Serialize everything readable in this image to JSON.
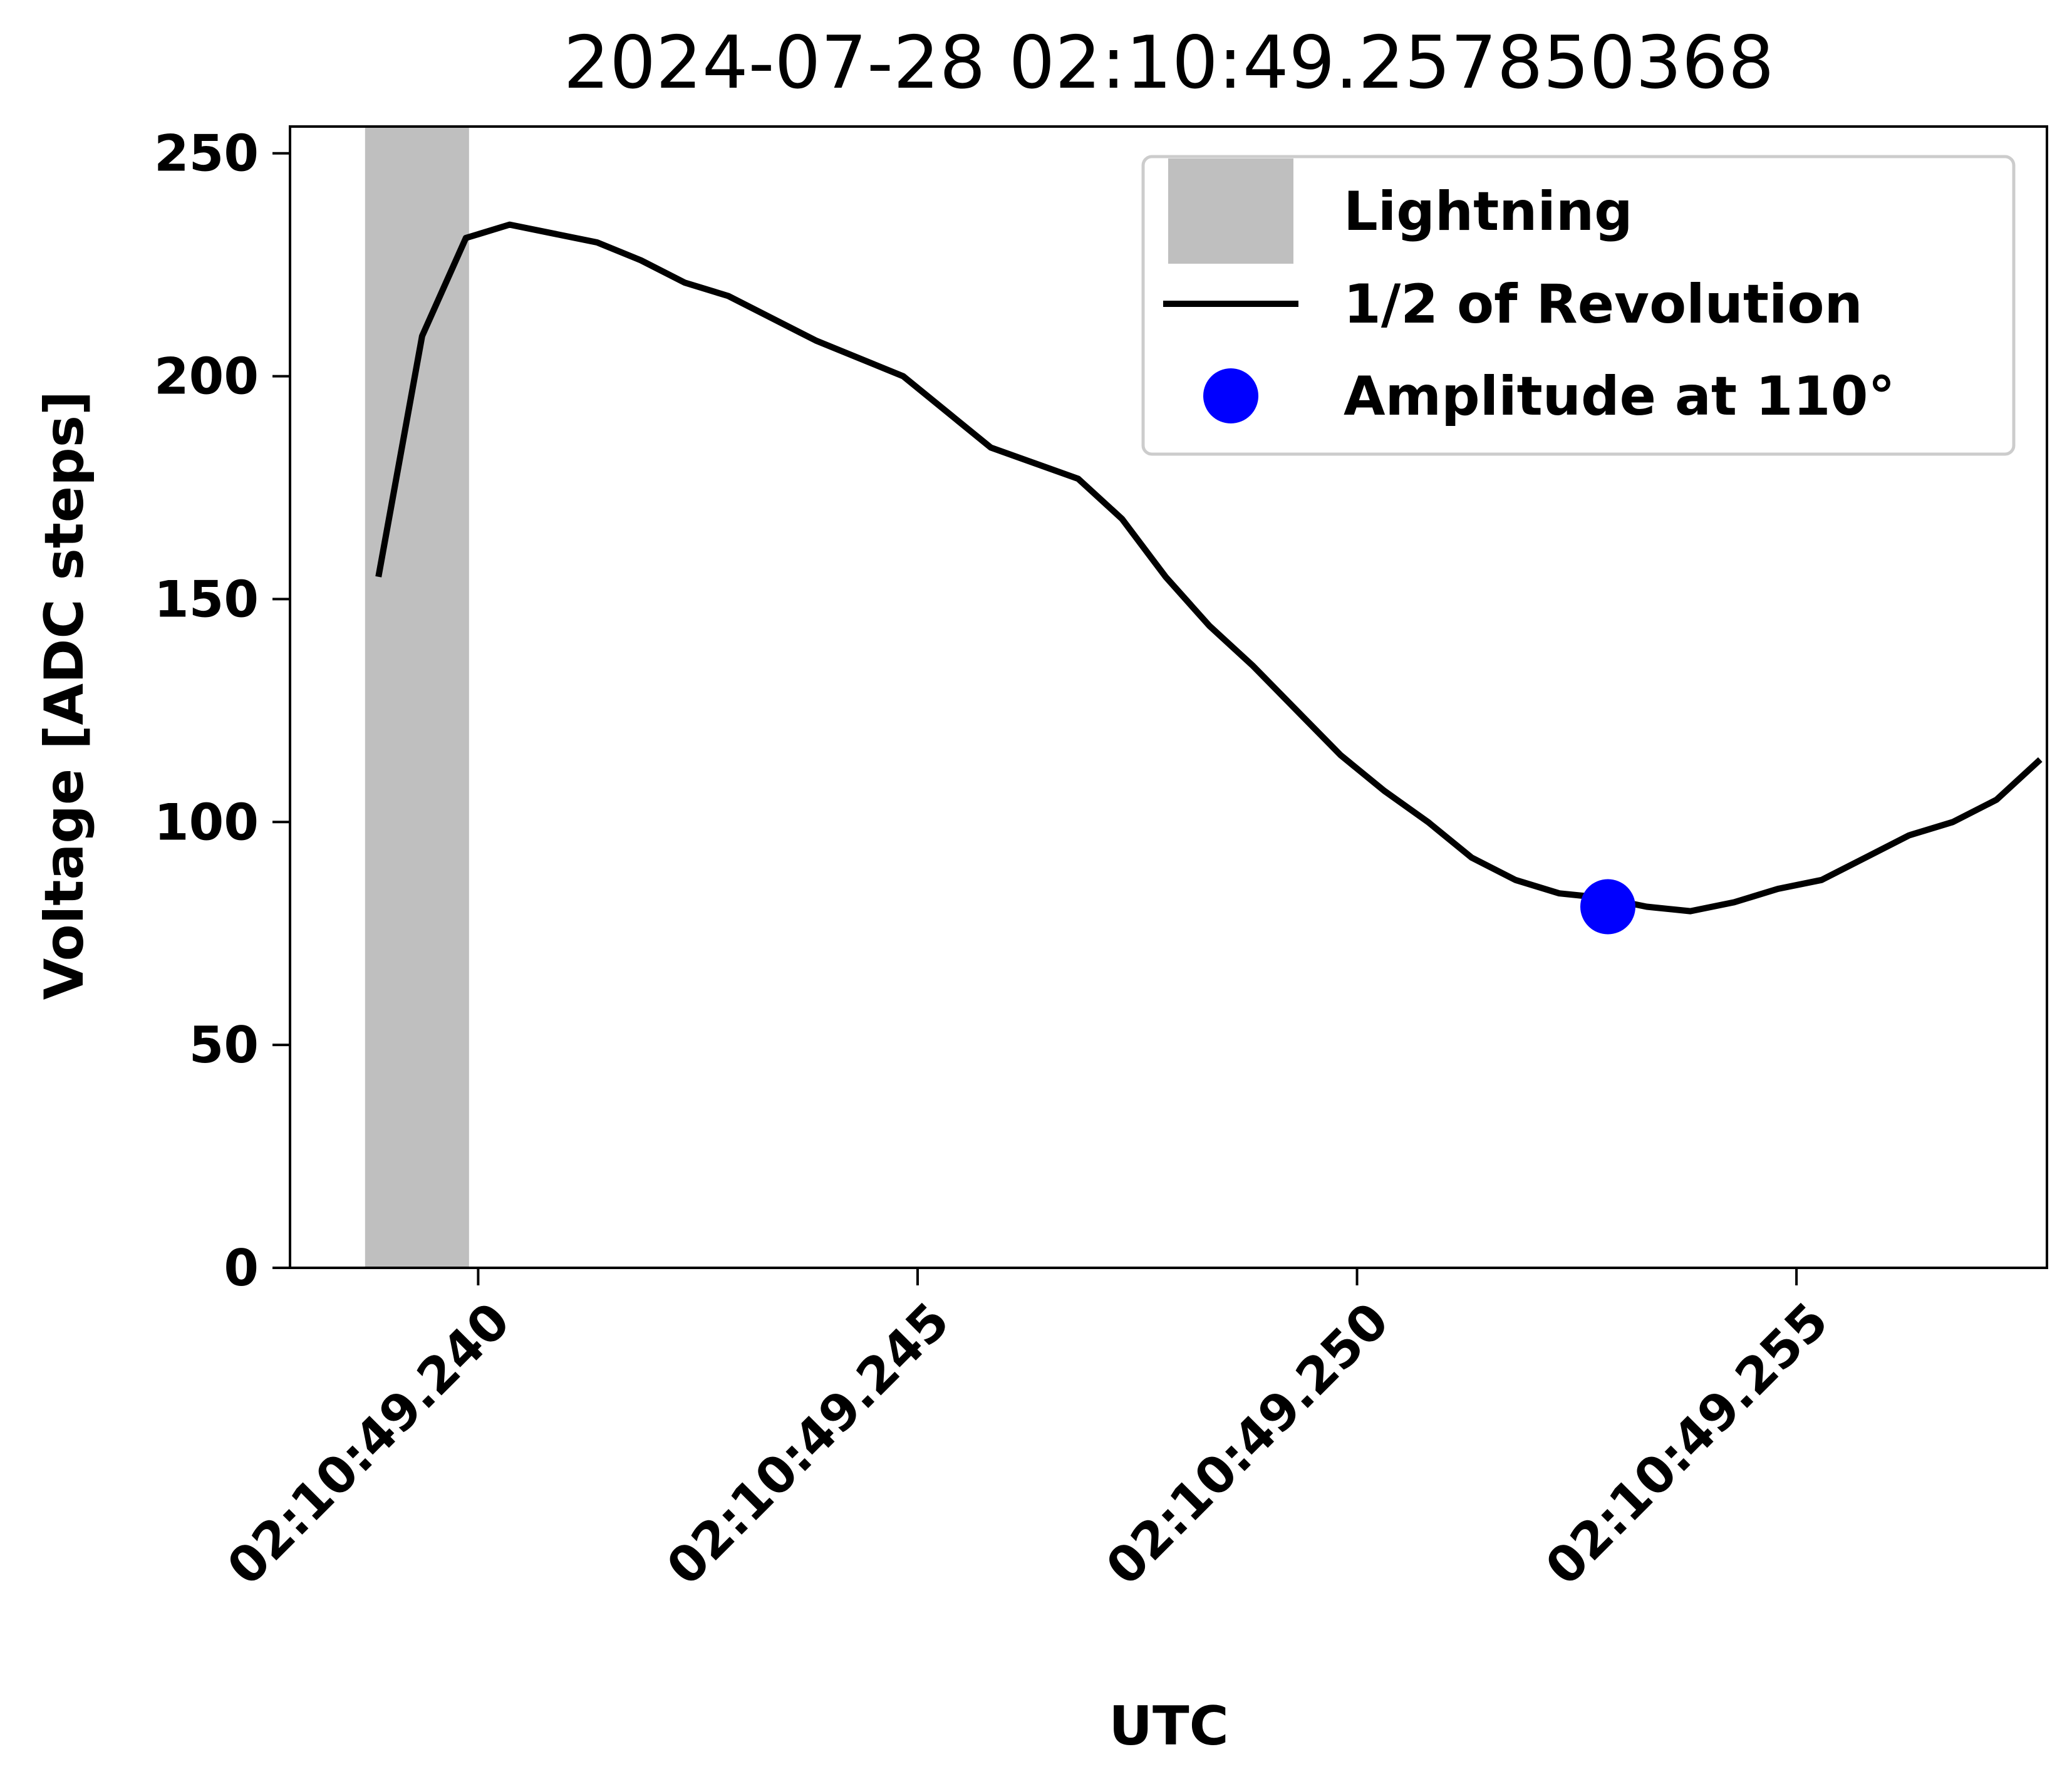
{
  "chart_data": {
    "type": "line",
    "title": "2024-07-28 02:10:49.257850368",
    "xlabel": "UTC",
    "ylabel": "Voltage  [ADC steps]",
    "xlim": [
      "02:10:49.237859",
      "02:10:49.257850"
    ],
    "ylim": [
      0,
      256
    ],
    "x_ticks": [
      "02:10:49.240",
      "02:10:49.245",
      "02:10:49.250",
      "02:10:49.255"
    ],
    "y_ticks": [
      0,
      50,
      100,
      150,
      200,
      250
    ],
    "grid": false,
    "legend_position": "upper right",
    "legend": [
      {
        "label": "Lightning",
        "kind": "patch",
        "color": "#bfbfbf"
      },
      {
        "label": "1/2 of Revolution",
        "kind": "line",
        "color": "#000000"
      },
      {
        "label": "Amplitude at 110°",
        "kind": "marker",
        "color": "#0000ff"
      }
    ],
    "lightning_span": {
      "x_start": "02:10:49.238713",
      "x_end": "02:10:49.239896"
    },
    "series": [
      {
        "name": "1/2 of Revolution",
        "color": "#000000",
        "x": [
          "02:10:49.238865",
          "02:10:49.239362",
          "02:10:49.239860",
          "02:10:49.240358",
          "02:10:49.241353",
          "02:10:49.241851",
          "02:10:49.242348",
          "02:10:49.242846",
          "02:10:49.243841",
          "02:10:49.244836",
          "02:10:49.245832",
          "02:10:49.246827",
          "02:10:49.247325",
          "02:10:49.247822",
          "02:10:49.248320",
          "02:10:49.248817",
          "02:10:49.249315",
          "02:10:49.249813",
          "02:10:49.250310",
          "02:10:49.250808",
          "02:10:49.251305",
          "02:10:49.251803",
          "02:10:49.252301",
          "02:10:49.252798",
          "02:10:49.253296",
          "02:10:49.253793",
          "02:10:49.254291",
          "02:10:49.254789",
          "02:10:49.255286",
          "02:10:49.255784",
          "02:10:49.256281",
          "02:10:49.256779",
          "02:10:49.257276",
          "02:10:49.257774"
        ],
        "y": [
          155,
          209,
          231,
          234,
          230,
          226,
          221,
          218,
          208,
          200,
          184,
          177,
          168,
          155,
          144,
          135,
          125,
          115,
          107,
          100,
          92,
          87,
          84,
          83,
          81,
          80,
          82,
          85,
          87,
          92,
          97,
          100,
          105,
          114
        ]
      },
      {
        "name": "Amplitude at 110°",
        "color": "#0000ff",
        "x": [
          "02:10:49.252854"
        ],
        "y": [
          81
        ]
      }
    ]
  }
}
